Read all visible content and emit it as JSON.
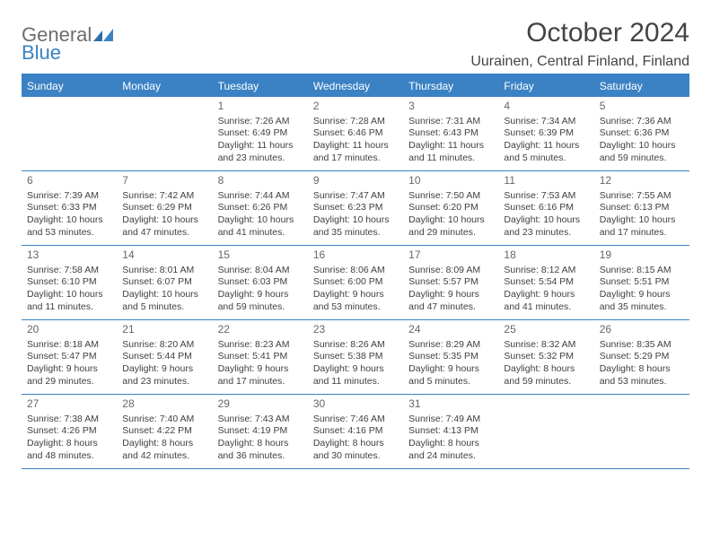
{
  "logo": {
    "word1": "General",
    "word2": "Blue"
  },
  "title": "October 2024",
  "location": "Uurainen, Central Finland, Finland",
  "header_bg": "#3b82c4",
  "day_names": [
    "Sunday",
    "Monday",
    "Tuesday",
    "Wednesday",
    "Thursday",
    "Friday",
    "Saturday"
  ],
  "weeks": [
    [
      null,
      null,
      {
        "d": "1",
        "sr": "Sunrise: 7:26 AM",
        "ss": "Sunset: 6:49 PM",
        "dl1": "Daylight: 11 hours",
        "dl2": "and 23 minutes."
      },
      {
        "d": "2",
        "sr": "Sunrise: 7:28 AM",
        "ss": "Sunset: 6:46 PM",
        "dl1": "Daylight: 11 hours",
        "dl2": "and 17 minutes."
      },
      {
        "d": "3",
        "sr": "Sunrise: 7:31 AM",
        "ss": "Sunset: 6:43 PM",
        "dl1": "Daylight: 11 hours",
        "dl2": "and 11 minutes."
      },
      {
        "d": "4",
        "sr": "Sunrise: 7:34 AM",
        "ss": "Sunset: 6:39 PM",
        "dl1": "Daylight: 11 hours",
        "dl2": "and 5 minutes."
      },
      {
        "d": "5",
        "sr": "Sunrise: 7:36 AM",
        "ss": "Sunset: 6:36 PM",
        "dl1": "Daylight: 10 hours",
        "dl2": "and 59 minutes."
      }
    ],
    [
      {
        "d": "6",
        "sr": "Sunrise: 7:39 AM",
        "ss": "Sunset: 6:33 PM",
        "dl1": "Daylight: 10 hours",
        "dl2": "and 53 minutes."
      },
      {
        "d": "7",
        "sr": "Sunrise: 7:42 AM",
        "ss": "Sunset: 6:29 PM",
        "dl1": "Daylight: 10 hours",
        "dl2": "and 47 minutes."
      },
      {
        "d": "8",
        "sr": "Sunrise: 7:44 AM",
        "ss": "Sunset: 6:26 PM",
        "dl1": "Daylight: 10 hours",
        "dl2": "and 41 minutes."
      },
      {
        "d": "9",
        "sr": "Sunrise: 7:47 AM",
        "ss": "Sunset: 6:23 PM",
        "dl1": "Daylight: 10 hours",
        "dl2": "and 35 minutes."
      },
      {
        "d": "10",
        "sr": "Sunrise: 7:50 AM",
        "ss": "Sunset: 6:20 PM",
        "dl1": "Daylight: 10 hours",
        "dl2": "and 29 minutes."
      },
      {
        "d": "11",
        "sr": "Sunrise: 7:53 AM",
        "ss": "Sunset: 6:16 PM",
        "dl1": "Daylight: 10 hours",
        "dl2": "and 23 minutes."
      },
      {
        "d": "12",
        "sr": "Sunrise: 7:55 AM",
        "ss": "Sunset: 6:13 PM",
        "dl1": "Daylight: 10 hours",
        "dl2": "and 17 minutes."
      }
    ],
    [
      {
        "d": "13",
        "sr": "Sunrise: 7:58 AM",
        "ss": "Sunset: 6:10 PM",
        "dl1": "Daylight: 10 hours",
        "dl2": "and 11 minutes."
      },
      {
        "d": "14",
        "sr": "Sunrise: 8:01 AM",
        "ss": "Sunset: 6:07 PM",
        "dl1": "Daylight: 10 hours",
        "dl2": "and 5 minutes."
      },
      {
        "d": "15",
        "sr": "Sunrise: 8:04 AM",
        "ss": "Sunset: 6:03 PM",
        "dl1": "Daylight: 9 hours",
        "dl2": "and 59 minutes."
      },
      {
        "d": "16",
        "sr": "Sunrise: 8:06 AM",
        "ss": "Sunset: 6:00 PM",
        "dl1": "Daylight: 9 hours",
        "dl2": "and 53 minutes."
      },
      {
        "d": "17",
        "sr": "Sunrise: 8:09 AM",
        "ss": "Sunset: 5:57 PM",
        "dl1": "Daylight: 9 hours",
        "dl2": "and 47 minutes."
      },
      {
        "d": "18",
        "sr": "Sunrise: 8:12 AM",
        "ss": "Sunset: 5:54 PM",
        "dl1": "Daylight: 9 hours",
        "dl2": "and 41 minutes."
      },
      {
        "d": "19",
        "sr": "Sunrise: 8:15 AM",
        "ss": "Sunset: 5:51 PM",
        "dl1": "Daylight: 9 hours",
        "dl2": "and 35 minutes."
      }
    ],
    [
      {
        "d": "20",
        "sr": "Sunrise: 8:18 AM",
        "ss": "Sunset: 5:47 PM",
        "dl1": "Daylight: 9 hours",
        "dl2": "and 29 minutes."
      },
      {
        "d": "21",
        "sr": "Sunrise: 8:20 AM",
        "ss": "Sunset: 5:44 PM",
        "dl1": "Daylight: 9 hours",
        "dl2": "and 23 minutes."
      },
      {
        "d": "22",
        "sr": "Sunrise: 8:23 AM",
        "ss": "Sunset: 5:41 PM",
        "dl1": "Daylight: 9 hours",
        "dl2": "and 17 minutes."
      },
      {
        "d": "23",
        "sr": "Sunrise: 8:26 AM",
        "ss": "Sunset: 5:38 PM",
        "dl1": "Daylight: 9 hours",
        "dl2": "and 11 minutes."
      },
      {
        "d": "24",
        "sr": "Sunrise: 8:29 AM",
        "ss": "Sunset: 5:35 PM",
        "dl1": "Daylight: 9 hours",
        "dl2": "and 5 minutes."
      },
      {
        "d": "25",
        "sr": "Sunrise: 8:32 AM",
        "ss": "Sunset: 5:32 PM",
        "dl1": "Daylight: 8 hours",
        "dl2": "and 59 minutes."
      },
      {
        "d": "26",
        "sr": "Sunrise: 8:35 AM",
        "ss": "Sunset: 5:29 PM",
        "dl1": "Daylight: 8 hours",
        "dl2": "and 53 minutes."
      }
    ],
    [
      {
        "d": "27",
        "sr": "Sunrise: 7:38 AM",
        "ss": "Sunset: 4:26 PM",
        "dl1": "Daylight: 8 hours",
        "dl2": "and 48 minutes."
      },
      {
        "d": "28",
        "sr": "Sunrise: 7:40 AM",
        "ss": "Sunset: 4:22 PM",
        "dl1": "Daylight: 8 hours",
        "dl2": "and 42 minutes."
      },
      {
        "d": "29",
        "sr": "Sunrise: 7:43 AM",
        "ss": "Sunset: 4:19 PM",
        "dl1": "Daylight: 8 hours",
        "dl2": "and 36 minutes."
      },
      {
        "d": "30",
        "sr": "Sunrise: 7:46 AM",
        "ss": "Sunset: 4:16 PM",
        "dl1": "Daylight: 8 hours",
        "dl2": "and 30 minutes."
      },
      {
        "d": "31",
        "sr": "Sunrise: 7:49 AM",
        "ss": "Sunset: 4:13 PM",
        "dl1": "Daylight: 8 hours",
        "dl2": "and 24 minutes."
      },
      null,
      null
    ]
  ]
}
